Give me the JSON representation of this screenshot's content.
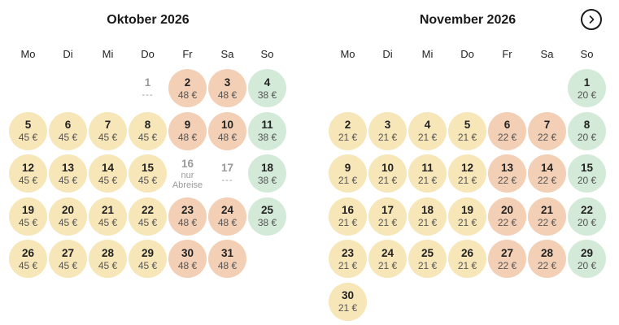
{
  "weekdays": [
    "Mo",
    "Di",
    "Mi",
    "Do",
    "Fr",
    "Sa",
    "So"
  ],
  "next_button_icon": "chevron-right-icon",
  "colors": {
    "yellow": "#f7e6b8",
    "orange": "#f3cfb5",
    "green": "#d4ead8"
  },
  "months": [
    {
      "title": "Oktober 2026",
      "offset": 3,
      "days": [
        {
          "num": "1",
          "price": "---",
          "status": "none"
        },
        {
          "num": "2",
          "price": "48 €",
          "status": "orange"
        },
        {
          "num": "3",
          "price": "48 €",
          "status": "orange"
        },
        {
          "num": "4",
          "price": "38 €",
          "status": "green"
        },
        {
          "num": "5",
          "price": "45 €",
          "status": "yellow"
        },
        {
          "num": "6",
          "price": "45 €",
          "status": "yellow"
        },
        {
          "num": "7",
          "price": "45 €",
          "status": "yellow"
        },
        {
          "num": "8",
          "price": "45 €",
          "status": "yellow"
        },
        {
          "num": "9",
          "price": "48 €",
          "status": "orange"
        },
        {
          "num": "10",
          "price": "48 €",
          "status": "orange"
        },
        {
          "num": "11",
          "price": "38 €",
          "status": "green"
        },
        {
          "num": "12",
          "price": "45 €",
          "status": "yellow"
        },
        {
          "num": "13",
          "price": "45 €",
          "status": "yellow"
        },
        {
          "num": "14",
          "price": "45 €",
          "status": "yellow"
        },
        {
          "num": "15",
          "price": "45 €",
          "status": "yellow"
        },
        {
          "num": "16",
          "price": "nur Abreise",
          "status": "none"
        },
        {
          "num": "17",
          "price": "---",
          "status": "none"
        },
        {
          "num": "18",
          "price": "38 €",
          "status": "green"
        },
        {
          "num": "19",
          "price": "45 €",
          "status": "yellow"
        },
        {
          "num": "20",
          "price": "45 €",
          "status": "yellow"
        },
        {
          "num": "21",
          "price": "45 €",
          "status": "yellow"
        },
        {
          "num": "22",
          "price": "45 €",
          "status": "yellow"
        },
        {
          "num": "23",
          "price": "48 €",
          "status": "orange"
        },
        {
          "num": "24",
          "price": "48 €",
          "status": "orange"
        },
        {
          "num": "25",
          "price": "38 €",
          "status": "green"
        },
        {
          "num": "26",
          "price": "45 €",
          "status": "yellow"
        },
        {
          "num": "27",
          "price": "45 €",
          "status": "yellow"
        },
        {
          "num": "28",
          "price": "45 €",
          "status": "yellow"
        },
        {
          "num": "29",
          "price": "45 €",
          "status": "yellow"
        },
        {
          "num": "30",
          "price": "48 €",
          "status": "orange"
        },
        {
          "num": "31",
          "price": "48 €",
          "status": "orange"
        }
      ]
    },
    {
      "title": "November 2026",
      "offset": 6,
      "days": [
        {
          "num": "1",
          "price": "20 €",
          "status": "green"
        },
        {
          "num": "2",
          "price": "21 €",
          "status": "yellow"
        },
        {
          "num": "3",
          "price": "21 €",
          "status": "yellow"
        },
        {
          "num": "4",
          "price": "21 €",
          "status": "yellow"
        },
        {
          "num": "5",
          "price": "21 €",
          "status": "yellow"
        },
        {
          "num": "6",
          "price": "22 €",
          "status": "orange"
        },
        {
          "num": "7",
          "price": "22 €",
          "status": "orange"
        },
        {
          "num": "8",
          "price": "20 €",
          "status": "green"
        },
        {
          "num": "9",
          "price": "21 €",
          "status": "yellow"
        },
        {
          "num": "10",
          "price": "21 €",
          "status": "yellow"
        },
        {
          "num": "11",
          "price": "21 €",
          "status": "yellow"
        },
        {
          "num": "12",
          "price": "21 €",
          "status": "yellow"
        },
        {
          "num": "13",
          "price": "22 €",
          "status": "orange"
        },
        {
          "num": "14",
          "price": "22 €",
          "status": "orange"
        },
        {
          "num": "15",
          "price": "20 €",
          "status": "green"
        },
        {
          "num": "16",
          "price": "21 €",
          "status": "yellow"
        },
        {
          "num": "17",
          "price": "21 €",
          "status": "yellow"
        },
        {
          "num": "18",
          "price": "21 €",
          "status": "yellow"
        },
        {
          "num": "19",
          "price": "21 €",
          "status": "yellow"
        },
        {
          "num": "20",
          "price": "22 €",
          "status": "orange"
        },
        {
          "num": "21",
          "price": "22 €",
          "status": "orange"
        },
        {
          "num": "22",
          "price": "20 €",
          "status": "green"
        },
        {
          "num": "23",
          "price": "21 €",
          "status": "yellow"
        },
        {
          "num": "24",
          "price": "21 €",
          "status": "yellow"
        },
        {
          "num": "25",
          "price": "21 €",
          "status": "yellow"
        },
        {
          "num": "26",
          "price": "21 €",
          "status": "yellow"
        },
        {
          "num": "27",
          "price": "22 €",
          "status": "orange"
        },
        {
          "num": "28",
          "price": "22 €",
          "status": "orange"
        },
        {
          "num": "29",
          "price": "20 €",
          "status": "green"
        },
        {
          "num": "30",
          "price": "21 €",
          "status": "yellow"
        }
      ]
    }
  ]
}
